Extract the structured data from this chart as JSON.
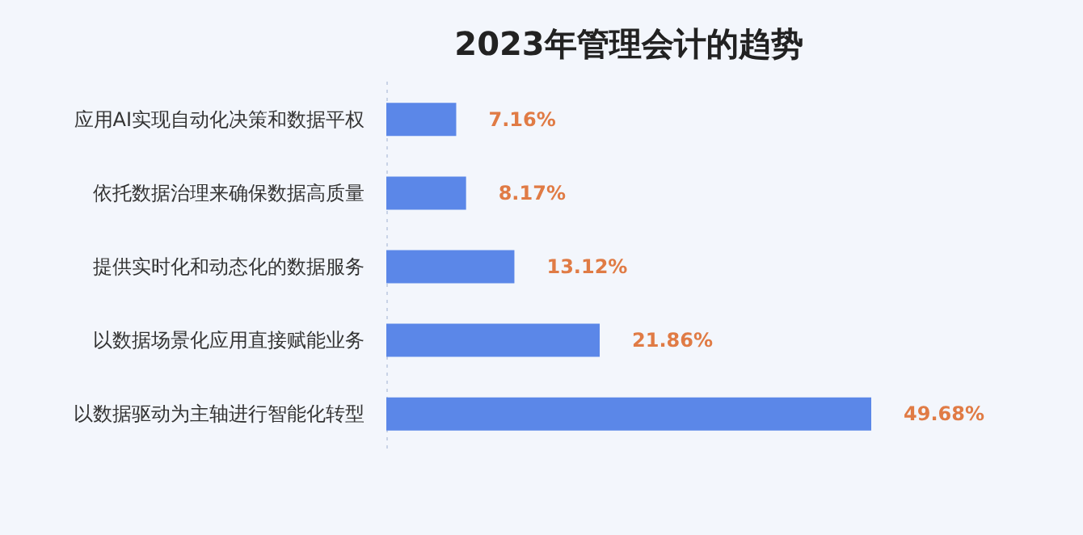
{
  "chart_data": {
    "type": "bar",
    "orientation": "horizontal",
    "title": "2023年管理会计的趋势",
    "categories": [
      "应用AI实现自动化决策和数据平权",
      "依托数据治理来确保数据高质量",
      "提供实时化和动态化的数据服务",
      "以数据场景化应用直接赋能业务",
      "以数据驱动为主轴进行智能化转型"
    ],
    "values": [
      7.16,
      8.17,
      13.12,
      21.86,
      49.68
    ],
    "value_labels": [
      "7.16%",
      "8.17%",
      "13.12%",
      "21.86%",
      "49.68%"
    ],
    "color": "#5b87e8",
    "tick_labels": "y"
  }
}
